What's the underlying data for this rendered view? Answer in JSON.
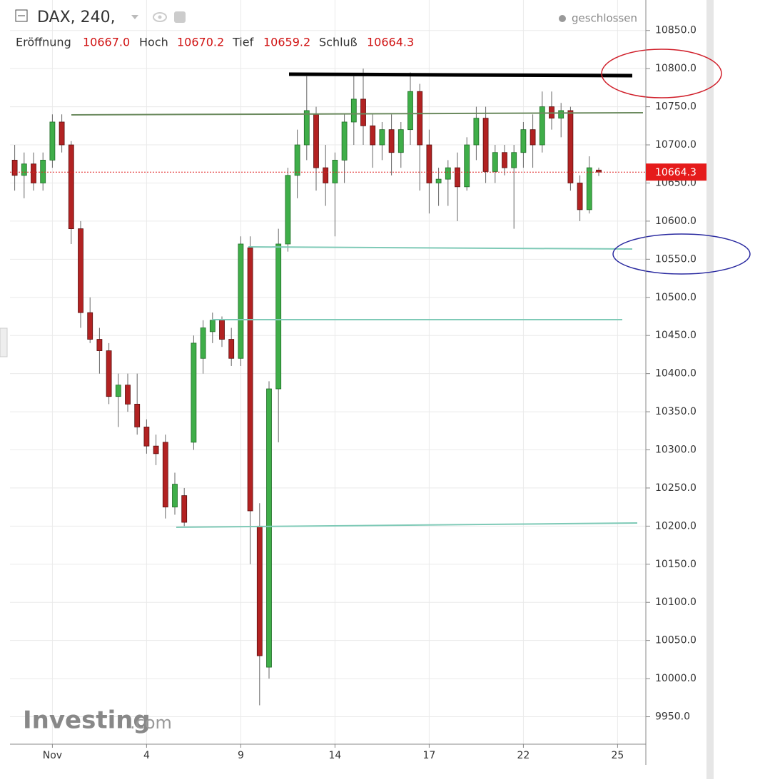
{
  "chart_data": {
    "type": "candlestick",
    "title": "DAX, 240,",
    "status": "geschlossen",
    "legend": {
      "open_label": "Eröffnung",
      "open_value": "10667.0",
      "high_label": "Hoch",
      "high_value": "10670.2",
      "low_label": "Tief",
      "low_value": "10659.2",
      "close_label": "Schluß",
      "close_value": "10664.3"
    },
    "watermark": [
      "Investing",
      ".com"
    ],
    "last_price": 10664.3,
    "last_price_label": "10664.3",
    "up_color": "#3fae49",
    "down_color": "#b22222",
    "grid": true,
    "categories": [
      "",
      null,
      null,
      null,
      "Nov",
      null,
      null,
      null,
      null,
      null,
      null,
      null,
      null,
      null,
      "4",
      null,
      null,
      null,
      null,
      null,
      null,
      null,
      null,
      null,
      "9",
      null,
      null,
      null,
      null,
      null,
      null,
      null,
      null,
      null,
      "14",
      null,
      null,
      null,
      null,
      null,
      null,
      null,
      null,
      null,
      "17",
      null,
      null,
      null,
      null,
      null,
      null,
      null,
      null,
      null,
      "22",
      null,
      null,
      null,
      null,
      null,
      null,
      null,
      null,
      null,
      "25"
    ],
    "open": [
      10680,
      10660,
      10675,
      10650,
      10680,
      10730,
      10700,
      10590,
      10480,
      10445,
      10430,
      10370,
      10385,
      10360,
      10330,
      10305,
      10310,
      10225,
      10240,
      10310,
      10420,
      10455,
      10470,
      10445,
      10420,
      10565,
      10200,
      10015,
      10380,
      10570,
      10660,
      10700,
      10740,
      10670,
      10650,
      10680,
      10730,
      10760,
      10725,
      10700,
      10720,
      10690,
      10720,
      10770,
      10700,
      10650,
      10655,
      10670,
      10645,
      10700,
      10735,
      10665,
      10690,
      10670,
      10690,
      10720,
      10700,
      10750,
      10735,
      10745,
      10650,
      10615,
      10667,
      null,
      null
    ],
    "high": [
      10700,
      10690,
      10690,
      10690,
      10740,
      10740,
      10705,
      10600,
      10500,
      10460,
      10440,
      10400,
      10400,
      10400,
      10340,
      10320,
      10320,
      10270,
      10250,
      10450,
      10470,
      10480,
      10475,
      10460,
      10580,
      10580,
      10230,
      10390,
      10590,
      10670,
      10720,
      10790,
      10750,
      10700,
      10690,
      10740,
      10790,
      10800,
      10740,
      10730,
      10740,
      10730,
      10795,
      10780,
      10720,
      10670,
      10680,
      10690,
      10710,
      10750,
      10750,
      10700,
      10700,
      10700,
      10730,
      10740,
      10770,
      10770,
      10755,
      10750,
      10660,
      10685,
      10670.2,
      null,
      null
    ],
    "low": [
      10640,
      10630,
      10640,
      10640,
      10670,
      10690,
      10570,
      10460,
      10440,
      10400,
      10360,
      10330,
      10350,
      10320,
      10295,
      10280,
      10210,
      10215,
      10200,
      10300,
      10400,
      10440,
      10435,
      10410,
      10410,
      10150,
      9965,
      10000,
      10310,
      10560,
      10630,
      10680,
      10640,
      10620,
      10580,
      10650,
      10700,
      10700,
      10670,
      10680,
      10660,
      10670,
      10700,
      10640,
      10610,
      10620,
      10620,
      10600,
      10640,
      10680,
      10650,
      10650,
      10660,
      10590,
      10670,
      10670,
      10690,
      10720,
      10710,
      10640,
      10600,
      10610,
      10659.2,
      null,
      null
    ],
    "close": [
      10660,
      10675,
      10650,
      10680,
      10730,
      10700,
      10590,
      10480,
      10445,
      10430,
      10370,
      10385,
      10360,
      10330,
      10305,
      10295,
      10225,
      10255,
      10205,
      10440,
      10460,
      10470,
      10445,
      10420,
      10570,
      10220,
      10030,
      10380,
      10570,
      10660,
      10700,
      10745,
      10670,
      10650,
      10680,
      10730,
      10760,
      10725,
      10700,
      10720,
      10690,
      10720,
      10770,
      10700,
      10650,
      10655,
      10670,
      10645,
      10700,
      10735,
      10665,
      10690,
      10670,
      10690,
      10720,
      10700,
      10750,
      10735,
      10745,
      10650,
      10615,
      10670,
      10664.3,
      null,
      null
    ],
    "ylim": [
      9914,
      10890
    ],
    "yticks": [
      {
        "value": 9950,
        "label": "9950.0"
      },
      {
        "value": 10000,
        "label": "10000.0"
      },
      {
        "value": 10050,
        "label": "10050.0"
      },
      {
        "value": 10100,
        "label": "10100.0"
      },
      {
        "value": 10150,
        "label": "10150.0"
      },
      {
        "value": 10200,
        "label": "10200.0"
      },
      {
        "value": 10250,
        "label": "10250.0"
      },
      {
        "value": 10300,
        "label": "10300.0"
      },
      {
        "value": 10350,
        "label": "10350.0"
      },
      {
        "value": 10400,
        "label": "10400.0"
      },
      {
        "value": 10450,
        "label": "10450.0"
      },
      {
        "value": 10500,
        "label": "10500.0"
      },
      {
        "value": 10550,
        "label": "10550.0"
      },
      {
        "value": 10600,
        "label": "10600.0"
      },
      {
        "value": 10650,
        "label": "10650.0"
      },
      {
        "value": 10700,
        "label": "10700.0"
      },
      {
        "value": 10750,
        "label": "10750.0"
      },
      {
        "value": 10800,
        "label": "10800.0"
      },
      {
        "value": 10850,
        "label": "10850.0"
      }
    ]
  }
}
